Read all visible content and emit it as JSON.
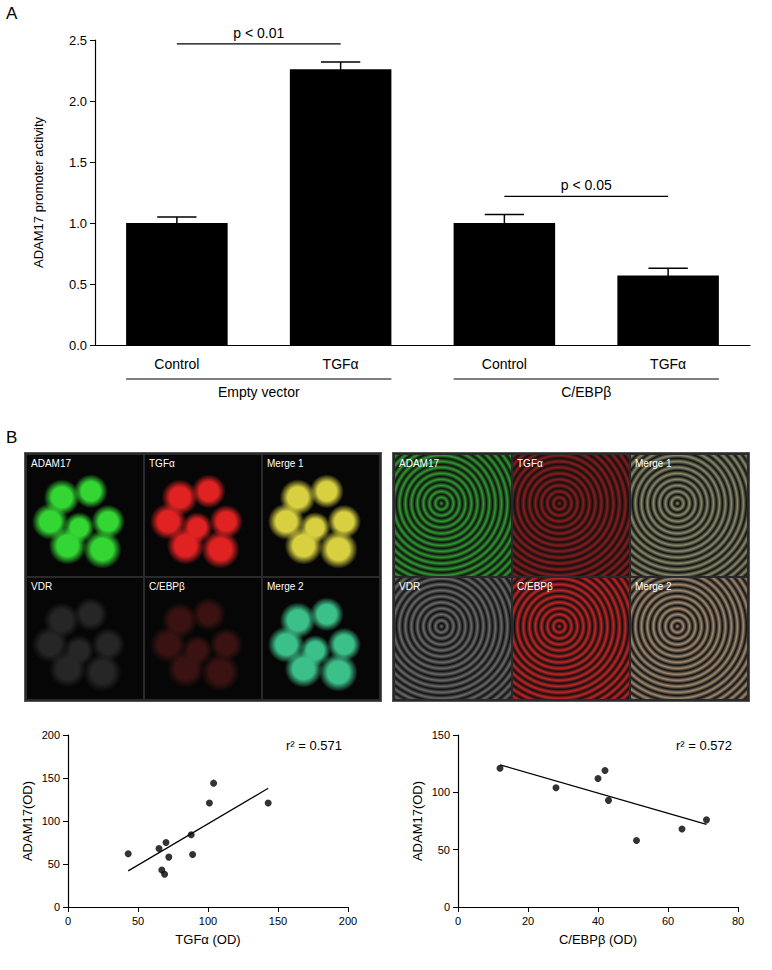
{
  "panel_labels": [
    "A",
    "B"
  ],
  "chart_data": [
    {
      "type": "bar",
      "y_label": "ADAM17 promoter activity",
      "categories": [
        "Control",
        "TGFα",
        "Control",
        "TGFα"
      ],
      "values": [
        1.0,
        2.26,
        1.0,
        0.57
      ],
      "errors": [
        0.05,
        0.06,
        0.07,
        0.06
      ],
      "color": "#000000",
      "ylim": [
        0,
        2.5
      ],
      "yticks": [
        {
          "value": 0,
          "label": "0.0"
        },
        0.5,
        {
          "value": 1,
          "label": "1.0"
        },
        1.5,
        {
          "value": 2,
          "label": "2.0"
        },
        2.5
      ],
      "grid": false,
      "groups": [
        {
          "label": "Empty vector",
          "members": [
            0,
            1
          ]
        },
        {
          "label": "C/EBPβ",
          "members": [
            2,
            3
          ]
        }
      ],
      "annotations": [
        {
          "text": "p < 0.01",
          "between": [
            0,
            1
          ]
        },
        {
          "text": "p < 0.05",
          "between": [
            2,
            3
          ]
        }
      ]
    },
    {
      "type": "scatter",
      "x_label": "TGFα (OD)",
      "y_label": "ADAM17(OD)",
      "x": [
        43,
        65,
        67,
        69,
        70,
        72,
        88,
        89,
        101,
        104,
        143
      ],
      "values": [
        62,
        68,
        43,
        38,
        75,
        58,
        84,
        61,
        121,
        144,
        121
      ],
      "fit": {
        "x": [
          43,
          143
        ],
        "values": [
          42,
          138
        ]
      },
      "color": "#000000",
      "marker": "circle",
      "xlim": [
        0,
        200
      ],
      "xticks": [
        0,
        50,
        100,
        150,
        200
      ],
      "ylim": [
        0,
        200
      ],
      "yticks": [
        0,
        50,
        100,
        150,
        200
      ],
      "grid": false,
      "annotation": "r² = 0.571"
    },
    {
      "type": "scatter",
      "x_label": "C/EBPβ (OD)",
      "y_label": "ADAM17(OD)",
      "x": [
        12,
        28,
        40,
        42,
        43,
        51,
        64,
        71
      ],
      "values": [
        121,
        104,
        112,
        119,
        93,
        58,
        68,
        76
      ],
      "fit": {
        "x": [
          12,
          71
        ],
        "values": [
          124,
          72
        ]
      },
      "color": "#000000",
      "marker": "circle",
      "xlim": [
        0,
        80
      ],
      "xticks": [
        0,
        20,
        40,
        60,
        80
      ],
      "ylim": [
        0,
        150
      ],
      "yticks": [
        0,
        50,
        100,
        150
      ],
      "grid": false,
      "annotation": "r² = 0.572"
    }
  ],
  "micrographs": [
    {
      "tiles": [
        {
          "label": "ADAM17",
          "color": "#33d633"
        },
        {
          "label": "TGFα",
          "color": "#e02222"
        },
        {
          "label": "Merge 1",
          "color": "#d8d040"
        },
        {
          "label": "VDR",
          "color": "#262626"
        },
        {
          "label": "C/EBPβ",
          "color": "#3a1212"
        },
        {
          "label": "Merge 2",
          "color": "#3cc08a"
        }
      ]
    },
    {
      "tiles": [
        {
          "label": "ADAM17",
          "color": "#2f9a2f"
        },
        {
          "label": "TGFα",
          "color": "#8a1c1c"
        },
        {
          "label": "Merge 1",
          "color": "#8a8a6a"
        },
        {
          "label": "VDR",
          "color": "#6a6a6a"
        },
        {
          "label": "C/EBPβ",
          "color": "#c42424"
        },
        {
          "label": "Merge 2",
          "color": "#a08a70"
        }
      ]
    }
  ]
}
